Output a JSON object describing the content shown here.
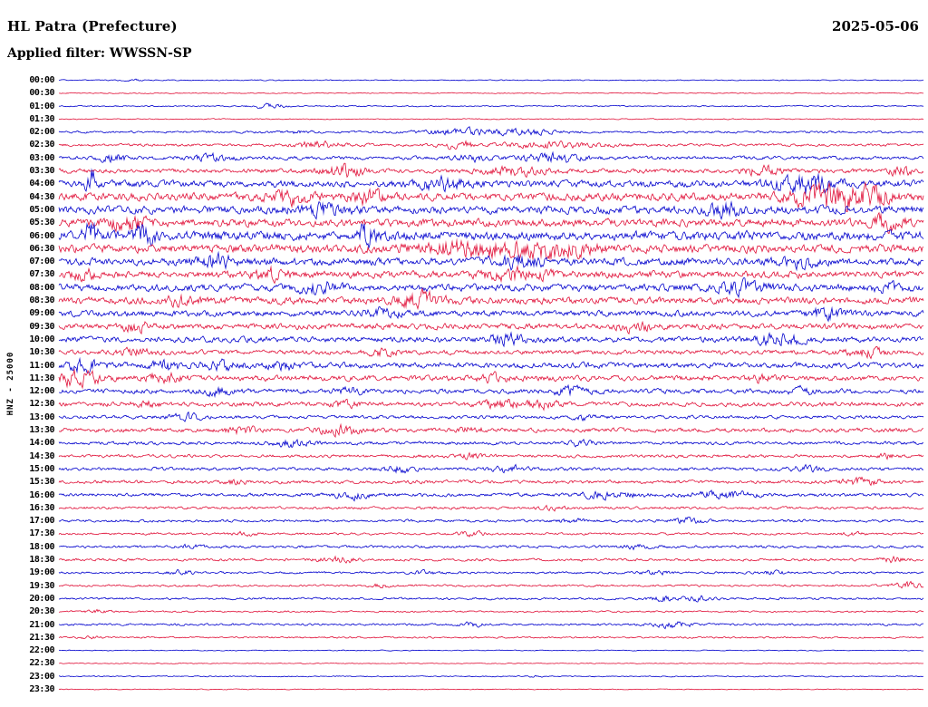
{
  "header": {
    "station_title": "HL Patra (Prefecture)",
    "date": "2025-05-06",
    "filter_label": "Applied filter: WWSSN-SP"
  },
  "axis": {
    "channel_scale_label": "HNZ - 25000",
    "minutes_per_line": 30,
    "time_start": "00:00",
    "time_end": "23:30"
  },
  "chart_data": {
    "type": "line",
    "title": "HL Patra (Prefecture) helicorder, filter WWSSN-SP, 2025-05-06",
    "legend_position": "none",
    "grid": false,
    "trace_colors": {
      "blue": "#0000cd",
      "red": "#e01038"
    },
    "rows": [
      {
        "label": "00:00",
        "color": "blue",
        "amp": 0.4,
        "bursts": [
          [
            145,
            8,
            2.0
          ]
        ]
      },
      {
        "label": "00:30",
        "color": "red",
        "amp": 0.4,
        "bursts": []
      },
      {
        "label": "01:00",
        "color": "blue",
        "amp": 0.5,
        "bursts": [
          [
            297,
            14,
            3.5
          ]
        ]
      },
      {
        "label": "01:30",
        "color": "red",
        "amp": 0.4,
        "bursts": []
      },
      {
        "label": "02:00",
        "color": "blue",
        "amp": 0.9,
        "bursts": [
          [
            330,
            8,
            1.5
          ],
          [
            512,
            30,
            2.6
          ],
          [
            578,
            25,
            2.2
          ]
        ]
      },
      {
        "label": "02:30",
        "color": "red",
        "amp": 1.1,
        "bursts": [
          [
            350,
            18,
            2.6
          ],
          [
            505,
            14,
            3.0
          ],
          [
            612,
            40,
            2.0
          ]
        ]
      },
      {
        "label": "03:00",
        "color": "blue",
        "amp": 1.4,
        "bursts": [
          [
            125,
            12,
            2.2
          ],
          [
            235,
            15,
            1.8
          ],
          [
            520,
            15,
            1.6
          ],
          [
            612,
            25,
            2.4
          ]
        ]
      },
      {
        "label": "03:30",
        "color": "red",
        "amp": 1.8,
        "bursts": [
          [
            380,
            15,
            2.8
          ],
          [
            570,
            30,
            1.5
          ],
          [
            842,
            15,
            1.8
          ],
          [
            995,
            10,
            1.8
          ]
        ]
      },
      {
        "label": "04:00",
        "color": "blue",
        "amp": 2.8,
        "bursts": [
          [
            100,
            4,
            4.0
          ],
          [
            490,
            20,
            1.5
          ],
          [
            892,
            25,
            2.2
          ]
        ]
      },
      {
        "label": "04:30",
        "color": "red",
        "amp": 3.2,
        "bursts": [
          [
            320,
            15,
            1.6
          ],
          [
            405,
            12,
            1.6
          ],
          [
            915,
            30,
            2.6
          ],
          [
            962,
            15,
            2.0
          ]
        ]
      },
      {
        "label": "05:00",
        "color": "blue",
        "amp": 3.2,
        "bursts": [
          [
            352,
            20,
            1.4
          ],
          [
            800,
            15,
            1.4
          ]
        ]
      },
      {
        "label": "05:30",
        "color": "red",
        "amp": 3.2,
        "bursts": [
          [
            140,
            15,
            1.4
          ],
          [
            980,
            12,
            1.8
          ]
        ]
      },
      {
        "label": "06:00",
        "color": "blue",
        "amp": 3.8,
        "bursts": [
          [
            100,
            6,
            2.6
          ],
          [
            160,
            8,
            2.0
          ],
          [
            405,
            10,
            1.8
          ]
        ]
      },
      {
        "label": "06:30",
        "color": "red",
        "amp": 3.4,
        "bursts": [
          [
            520,
            40,
            1.6
          ],
          [
            612,
            30,
            1.6
          ]
        ]
      },
      {
        "label": "07:00",
        "color": "blue",
        "amp": 3.0,
        "bursts": [
          [
            240,
            15,
            1.3
          ],
          [
            570,
            20,
            1.3
          ],
          [
            880,
            15,
            1.3
          ]
        ]
      },
      {
        "label": "07:30",
        "color": "red",
        "amp": 2.9,
        "bursts": [
          [
            90,
            10,
            1.3
          ],
          [
            300,
            12,
            1.3
          ],
          [
            570,
            25,
            1.3
          ]
        ]
      },
      {
        "label": "08:00",
        "color": "blue",
        "amp": 2.9,
        "bursts": [
          [
            352,
            15,
            1.3
          ],
          [
            820,
            20,
            1.3
          ],
          [
            980,
            10,
            1.3
          ]
        ]
      },
      {
        "label": "08:30",
        "color": "red",
        "amp": 2.9,
        "bursts": [
          [
            200,
            12,
            1.3
          ],
          [
            462,
            18,
            1.9
          ]
        ]
      },
      {
        "label": "09:00",
        "color": "blue",
        "amp": 2.4,
        "bursts": [
          [
            420,
            15,
            1.2
          ],
          [
            912,
            15,
            1.5
          ]
        ]
      },
      {
        "label": "09:30",
        "color": "red",
        "amp": 2.4,
        "bursts": [
          [
            150,
            12,
            1.2
          ],
          [
            700,
            15,
            1.2
          ]
        ]
      },
      {
        "label": "10:00",
        "color": "blue",
        "amp": 2.3,
        "bursts": [
          [
            560,
            15,
            1.5
          ],
          [
            862,
            20,
            1.7
          ]
        ]
      },
      {
        "label": "10:30",
        "color": "red",
        "amp": 1.9,
        "bursts": [
          [
            150,
            12,
            1.6
          ],
          [
            422,
            12,
            1.4
          ],
          [
            955,
            15,
            1.6
          ]
        ]
      },
      {
        "label": "11:00",
        "color": "blue",
        "amp": 2.3,
        "bursts": [
          [
            95,
            15,
            1.8
          ],
          [
            185,
            12,
            1.5
          ],
          [
            250,
            15,
            1.5
          ],
          [
            312,
            10,
            1.3
          ]
        ]
      },
      {
        "label": "11:30",
        "color": "red",
        "amp": 2.3,
        "bursts": [
          [
            85,
            18,
            2.4
          ],
          [
            180,
            12,
            1.8
          ],
          [
            545,
            12,
            1.2
          ],
          [
            840,
            10,
            1.2
          ]
        ]
      },
      {
        "label": "12:00",
        "color": "blue",
        "amp": 1.9,
        "bursts": [
          [
            240,
            12,
            1.6
          ],
          [
            385,
            10,
            1.3
          ],
          [
            630,
            15,
            1.9
          ],
          [
            885,
            10,
            1.3
          ]
        ]
      },
      {
        "label": "12:30",
        "color": "red",
        "amp": 1.8,
        "bursts": [
          [
            160,
            10,
            1.3
          ],
          [
            380,
            10,
            1.3
          ],
          [
            557,
            20,
            1.6
          ],
          [
            602,
            12,
            1.3
          ]
        ]
      },
      {
        "label": "13:00",
        "color": "blue",
        "amp": 1.4,
        "bursts": [
          [
            205,
            12,
            1.9
          ],
          [
            645,
            10,
            1.2
          ]
        ]
      },
      {
        "label": "13:30",
        "color": "red",
        "amp": 1.7,
        "bursts": [
          [
            265,
            12,
            1.7
          ],
          [
            377,
            18,
            2.1
          ],
          [
            520,
            10,
            1.2
          ]
        ]
      },
      {
        "label": "14:00",
        "color": "blue",
        "amp": 1.4,
        "bursts": [
          [
            322,
            14,
            1.9
          ],
          [
            640,
            10,
            1.2
          ]
        ]
      },
      {
        "label": "14:30",
        "color": "red",
        "amp": 1.3,
        "bursts": [
          [
            520,
            12,
            1.3
          ],
          [
            980,
            8,
            1.3
          ]
        ]
      },
      {
        "label": "15:00",
        "color": "blue",
        "amp": 1.4,
        "bursts": [
          [
            440,
            12,
            1.8
          ],
          [
            560,
            12,
            1.8
          ],
          [
            890,
            12,
            1.8
          ]
        ]
      },
      {
        "label": "15:30",
        "color": "red",
        "amp": 1.4,
        "bursts": [
          [
            260,
            10,
            1.3
          ],
          [
            950,
            15,
            2.1
          ]
        ]
      },
      {
        "label": "16:00",
        "color": "blue",
        "amp": 1.4,
        "bursts": [
          [
            390,
            14,
            2.1
          ],
          [
            672,
            25,
            1.8
          ],
          [
            795,
            25,
            1.8
          ]
        ]
      },
      {
        "label": "16:30",
        "color": "red",
        "amp": 1.1,
        "bursts": [
          [
            610,
            10,
            1.3
          ]
        ]
      },
      {
        "label": "17:00",
        "color": "blue",
        "amp": 1.1,
        "bursts": [
          [
            630,
            10,
            1.3
          ],
          [
            757,
            14,
            2.0
          ]
        ]
      },
      {
        "label": "17:30",
        "color": "red",
        "amp": 0.9,
        "bursts": [
          [
            270,
            10,
            1.8
          ],
          [
            520,
            12,
            1.8
          ],
          [
            940,
            8,
            1.4
          ]
        ]
      },
      {
        "label": "18:00",
        "color": "blue",
        "amp": 1.1,
        "bursts": [
          [
            210,
            8,
            1.4
          ],
          [
            700,
            12,
            1.7
          ]
        ]
      },
      {
        "label": "18:30",
        "color": "red",
        "amp": 1.1,
        "bursts": [
          [
            372,
            14,
            2.2
          ],
          [
            985,
            10,
            1.8
          ]
        ]
      },
      {
        "label": "19:00",
        "color": "blue",
        "amp": 0.9,
        "bursts": [
          [
            200,
            10,
            2.0
          ],
          [
            470,
            10,
            1.6
          ],
          [
            722,
            12,
            2.0
          ],
          [
            855,
            10,
            1.6
          ]
        ]
      },
      {
        "label": "19:30",
        "color": "red",
        "amp": 0.9,
        "bursts": [
          [
            420,
            8,
            1.4
          ],
          [
            1000,
            12,
            2.6
          ]
        ]
      },
      {
        "label": "20:00",
        "color": "blue",
        "amp": 0.9,
        "bursts": [
          [
            732,
            12,
            2.3
          ],
          [
            772,
            10,
            1.9
          ]
        ]
      },
      {
        "label": "20:30",
        "color": "red",
        "amp": 0.7,
        "bursts": [
          [
            105,
            10,
            1.7
          ]
        ]
      },
      {
        "label": "21:00",
        "color": "blue",
        "amp": 0.9,
        "bursts": [
          [
            520,
            10,
            1.6
          ],
          [
            742,
            16,
            2.6
          ]
        ]
      },
      {
        "label": "21:30",
        "color": "red",
        "amp": 0.7,
        "bursts": [
          [
            100,
            8,
            1.4
          ]
        ]
      },
      {
        "label": "22:00",
        "color": "blue",
        "amp": 0.35,
        "bursts": []
      },
      {
        "label": "22:30",
        "color": "red",
        "amp": 0.35,
        "bursts": []
      },
      {
        "label": "23:00",
        "color": "blue",
        "amp": 0.45,
        "bursts": [
          [
            590,
            8,
            1.0
          ]
        ]
      },
      {
        "label": "23:30",
        "color": "red",
        "amp": 0.35,
        "bursts": []
      }
    ]
  }
}
